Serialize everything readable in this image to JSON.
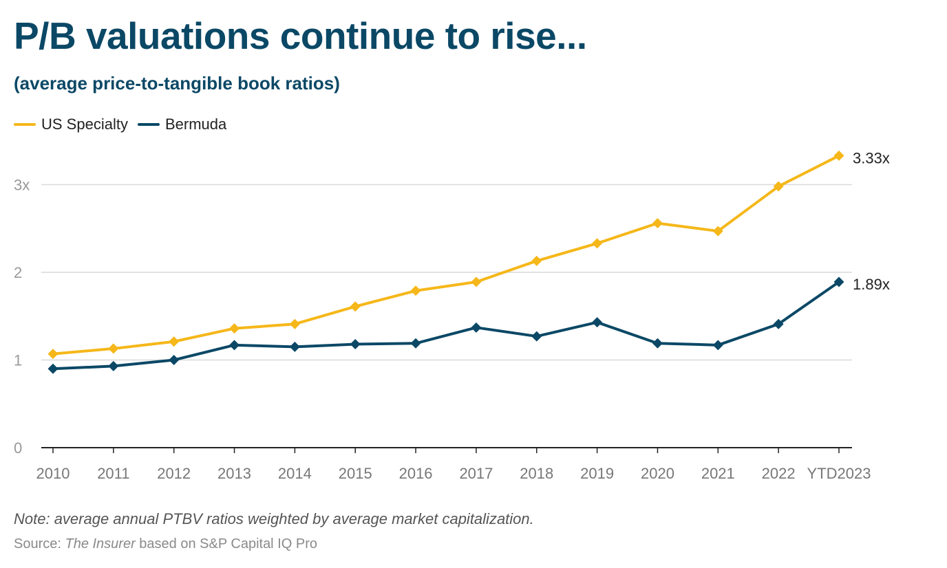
{
  "title": "P/B valuations continue to rise...",
  "subtitle": "(average price-to-tangible book ratios)",
  "note": "Note: average annual PTBV ratios weighted by average market capitalization.",
  "source": {
    "prefix": "Source: ",
    "publication": "The Insurer",
    "suffix": " based on S&P Capital IQ Pro"
  },
  "colors": {
    "us_specialty": "#f5b719",
    "bermuda": "#0b4866",
    "grid": "#d9d9d9",
    "axis_text": "#999999"
  },
  "chart_data": {
    "type": "line",
    "categories": [
      "2010",
      "2011",
      "2012",
      "2013",
      "2014",
      "2015",
      "2016",
      "2017",
      "2018",
      "2019",
      "2020",
      "2021",
      "2022",
      "YTD2023"
    ],
    "ylim": [
      0,
      3.3
    ],
    "yticks": [
      0,
      1,
      2,
      3
    ],
    "ytick_labels": [
      "0",
      "1",
      "2",
      "3x"
    ],
    "grid": true,
    "legend": "top-left",
    "series": [
      {
        "name": "US Specialty",
        "values": [
          1.07,
          1.13,
          1.21,
          1.36,
          1.41,
          1.61,
          1.79,
          1.89,
          2.13,
          2.33,
          2.56,
          2.47,
          2.98,
          3.33
        ],
        "end_label": "3.33x"
      },
      {
        "name": "Bermuda",
        "values": [
          0.9,
          0.93,
          1.0,
          1.17,
          1.15,
          1.18,
          1.19,
          1.37,
          1.27,
          1.43,
          1.19,
          1.17,
          1.41,
          1.89
        ],
        "end_label": "1.89x"
      }
    ]
  }
}
